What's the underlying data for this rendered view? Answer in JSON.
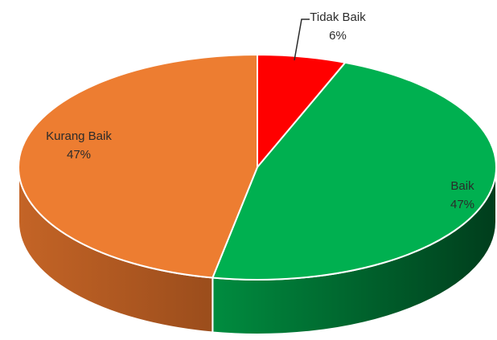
{
  "chart_data": {
    "type": "pie",
    "style": "3d",
    "title": "",
    "slices": [
      {
        "label": "Tidak Baik",
        "value": 6,
        "value_label": "6%",
        "color": "#ff0000"
      },
      {
        "label": "Baik",
        "value": 47,
        "value_label": "47%",
        "color": "#00b050"
      },
      {
        "label": "Kurang Baik",
        "value": 47,
        "value_label": "47%",
        "color": "#ed7d31"
      }
    ]
  }
}
